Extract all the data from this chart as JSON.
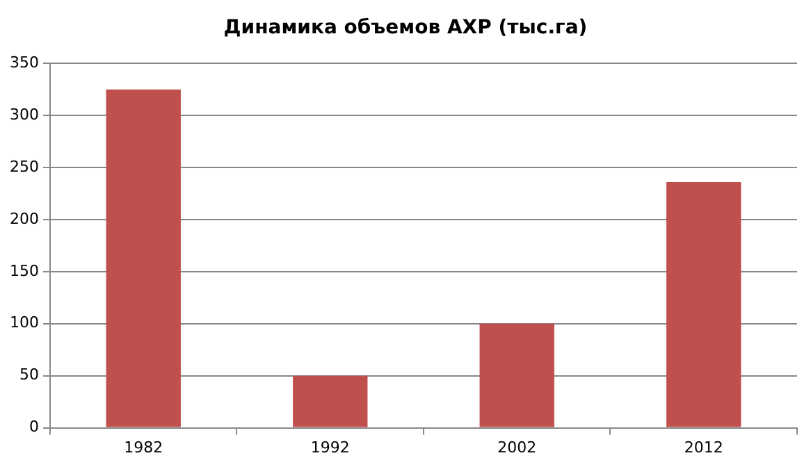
{
  "chart_data": {
    "type": "bar",
    "title": "Динамика объемов АХР (тыс.га)",
    "categories": [
      "1982",
      "1992",
      "2002",
      "2012"
    ],
    "values": [
      325,
      50,
      100,
      236
    ],
    "color": "#c0504d",
    "ylim": [
      0,
      350
    ],
    "yticks": [
      0,
      50,
      100,
      150,
      200,
      250,
      300,
      350
    ],
    "grid": "y"
  }
}
